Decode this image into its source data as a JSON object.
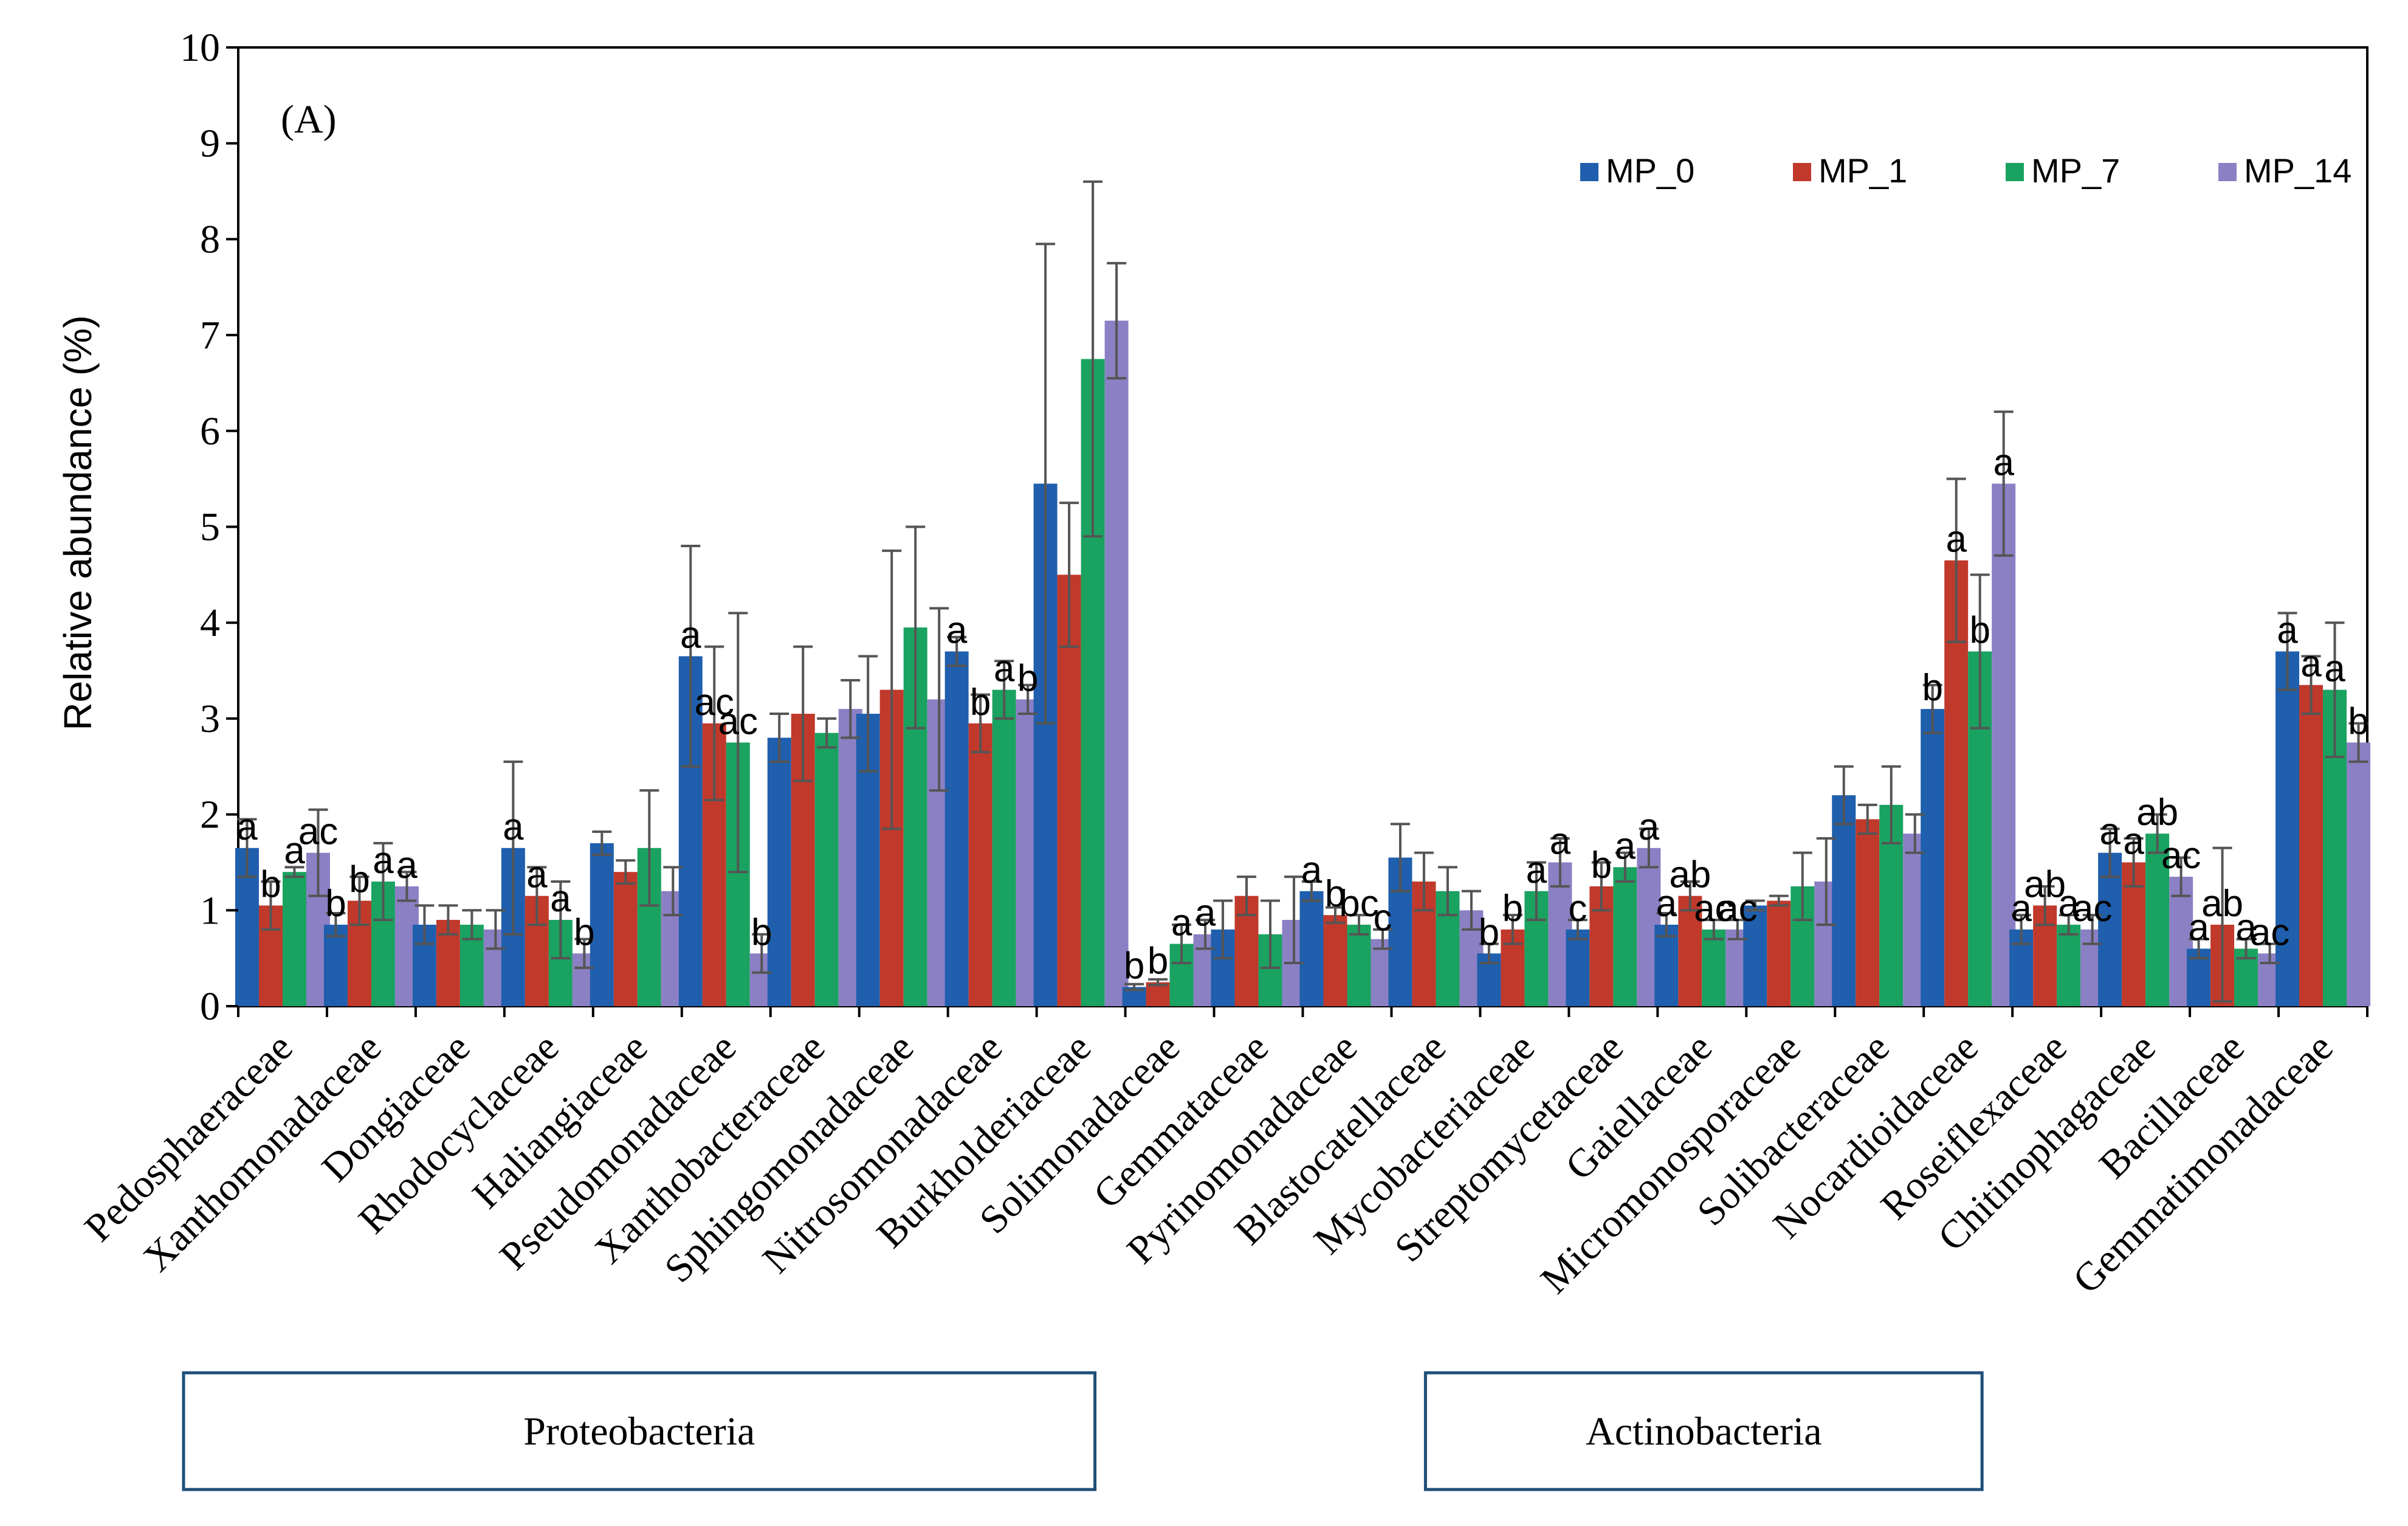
{
  "chart_data": {
    "type": "bar",
    "panel_label": "(A)",
    "ylabel": "Relative abundance (%)",
    "xlabel": "",
    "ylim": [
      0,
      10
    ],
    "yticks": [
      "0",
      "1",
      "2",
      "3",
      "4",
      "5",
      "6",
      "7",
      "8",
      "9",
      "10"
    ],
    "grid": false,
    "legend_position": "top-right",
    "categories": [
      "Pedosphaeraceae",
      "Xanthomonadaceae",
      "Dongiaceae",
      "Rhodocyclaceae",
      "Haliangiaceae",
      "Pseudomonadaceae",
      "Xanthobacteraceae",
      "Sphingomonadaceae",
      "Nitrosomonadaceae",
      "Burkholderiaceae",
      "Solimonadaceae",
      "Gemmataceae",
      "Pyrinomonadaceae",
      "Blastocatellaceae",
      "Mycobacteriaceae",
      "Streptomycetaceae",
      "Gaiellaceae",
      "Micromonosporaceae",
      "Solibacteraceae",
      "Nocardioidaceae",
      "Roseiflexaceae",
      "Chitinophagaceae",
      "Bacillaceae",
      "Gemmatimonadaceae"
    ],
    "series": [
      {
        "name": "MP_0",
        "color": "#1f5fad",
        "values": [
          1.65,
          0.85,
          0.85,
          1.65,
          1.7,
          3.65,
          2.8,
          3.05,
          3.7,
          5.45,
          0.2,
          0.8,
          1.2,
          1.55,
          0.55,
          0.8,
          0.85,
          1.05,
          2.2,
          3.1,
          0.8,
          1.6,
          0.6,
          3.7
        ],
        "errors": [
          0.3,
          0.12,
          0.2,
          0.9,
          0.12,
          1.15,
          0.25,
          0.6,
          0.15,
          2.5,
          0.03,
          0.3,
          0.1,
          0.35,
          0.1,
          0.1,
          0.12,
          0.05,
          0.3,
          0.25,
          0.15,
          0.25,
          0.1,
          0.4
        ],
        "sig": [
          "a",
          "b",
          "",
          "a",
          "",
          "a",
          "",
          "",
          "a",
          "",
          "b",
          "",
          "a",
          "",
          "b",
          "c",
          "a",
          "",
          "",
          "b",
          "a",
          "a",
          "a",
          "a"
        ]
      },
      {
        "name": "MP_1",
        "color": "#c0392b",
        "values": [
          1.05,
          1.1,
          0.9,
          1.15,
          1.4,
          2.95,
          3.05,
          3.3,
          2.95,
          4.5,
          0.25,
          1.15,
          0.95,
          1.3,
          0.8,
          1.25,
          1.15,
          1.1,
          1.95,
          4.65,
          1.05,
          1.5,
          0.85,
          3.35
        ],
        "errors": [
          0.25,
          0.25,
          0.15,
          0.3,
          0.12,
          0.8,
          0.7,
          1.45,
          0.3,
          0.75,
          0.03,
          0.2,
          0.08,
          0.3,
          0.15,
          0.25,
          0.15,
          0.05,
          0.15,
          0.85,
          0.2,
          0.25,
          0.8,
          0.3
        ],
        "sig": [
          "b",
          "b",
          "",
          "a",
          "",
          "ac",
          "",
          "",
          "b",
          "",
          "b",
          "",
          "b",
          "",
          "b",
          "b",
          "ab",
          "",
          "",
          "a",
          "ab",
          "a",
          "ab",
          "a"
        ]
      },
      {
        "name": "MP_7",
        "color": "#1aa260",
        "values": [
          1.4,
          1.3,
          0.85,
          0.9,
          1.65,
          2.75,
          2.85,
          3.95,
          3.3,
          6.75,
          0.65,
          0.75,
          0.85,
          1.2,
          1.2,
          1.45,
          0.8,
          1.25,
          2.1,
          3.7,
          0.85,
          1.8,
          0.6,
          3.3
        ],
        "errors": [
          0.05,
          0.4,
          0.15,
          0.4,
          0.6,
          1.35,
          0.15,
          1.05,
          0.3,
          1.85,
          0.2,
          0.35,
          0.1,
          0.25,
          0.3,
          0.15,
          0.1,
          0.35,
          0.4,
          0.8,
          0.1,
          0.2,
          0.1,
          0.7
        ],
        "sig": [
          "a",
          "a",
          "",
          "a",
          "",
          "ac",
          "",
          "",
          "a",
          "",
          "a",
          "",
          "bc",
          "",
          "a",
          "a",
          "ac",
          "",
          "",
          "b",
          "a",
          "ab",
          "a",
          "a"
        ]
      },
      {
        "name": "MP_14",
        "color": "#8b80c4",
        "values": [
          1.6,
          1.25,
          0.8,
          0.55,
          1.2,
          0.55,
          3.1,
          3.2,
          3.2,
          7.15,
          0.75,
          0.9,
          0.7,
          1.0,
          1.5,
          1.65,
          0.8,
          1.3,
          1.8,
          5.45,
          0.8,
          1.35,
          0.55,
          2.75
        ],
        "errors": [
          0.45,
          0.15,
          0.2,
          0.15,
          0.25,
          0.2,
          0.3,
          0.95,
          0.15,
          0.6,
          0.15,
          0.45,
          0.1,
          0.2,
          0.25,
          0.2,
          0.1,
          0.45,
          0.2,
          0.75,
          0.15,
          0.2,
          0.1,
          0.2
        ],
        "sig": [
          "ac",
          "a",
          "",
          "b",
          "",
          "b",
          "",
          "",
          "b",
          "",
          "a",
          "",
          "c",
          "",
          "a",
          "a",
          "ac",
          "",
          "",
          "a",
          "ac",
          "ac",
          "ac",
          "b"
        ]
      }
    ],
    "groups": [
      {
        "label": "Proteobacteria",
        "start": 0,
        "end": 9
      },
      {
        "label": "Actinobacteria",
        "start": 14,
        "end": 19
      }
    ]
  }
}
